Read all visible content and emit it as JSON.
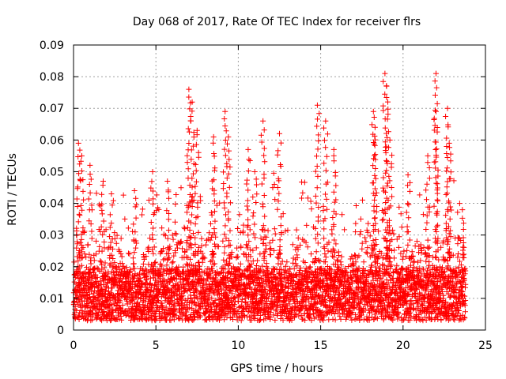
{
  "chart_data": {
    "type": "scatter",
    "title": "Day 068 of 2017, Rate Of TEC Index for receiver flrs",
    "xlabel": "GPS time / hours",
    "ylabel": "ROTI / TECUs",
    "xlim": [
      0,
      25
    ],
    "ylim": [
      0,
      0.09
    ],
    "xticks": [
      0,
      5,
      10,
      15,
      20,
      25
    ],
    "xtick_labels": [
      "0",
      "5",
      "10",
      "15",
      "20",
      "25"
    ],
    "yticks": [
      0,
      0.01,
      0.02,
      0.03,
      0.04,
      0.05,
      0.06,
      0.07,
      0.08,
      0.09
    ],
    "ytick_labels": [
      "0",
      "0.01",
      "0.02",
      "0.03",
      "0.04",
      "0.05",
      "0.06",
      "0.07",
      "0.08",
      "0.09"
    ],
    "grid": true,
    "marker": "+",
    "color": "#ff0000",
    "x_range_of_points": [
      0,
      23.8
    ],
    "baseline_band": [
      0.005,
      0.02
    ],
    "peaks": [
      {
        "x": 0.3,
        "y": 0.059
      },
      {
        "x": 0.5,
        "y": 0.055
      },
      {
        "x": 1.0,
        "y": 0.052
      },
      {
        "x": 1.8,
        "y": 0.047
      },
      {
        "x": 2.3,
        "y": 0.043
      },
      {
        "x": 3.7,
        "y": 0.044
      },
      {
        "x": 4.8,
        "y": 0.05
      },
      {
        "x": 5.7,
        "y": 0.047
      },
      {
        "x": 7.0,
        "y": 0.076
      },
      {
        "x": 7.2,
        "y": 0.072
      },
      {
        "x": 7.5,
        "y": 0.063
      },
      {
        "x": 8.5,
        "y": 0.061
      },
      {
        "x": 9.2,
        "y": 0.069
      },
      {
        "x": 9.4,
        "y": 0.061
      },
      {
        "x": 10.6,
        "y": 0.057
      },
      {
        "x": 11.0,
        "y": 0.05
      },
      {
        "x": 11.5,
        "y": 0.066
      },
      {
        "x": 12.5,
        "y": 0.062
      },
      {
        "x": 14.8,
        "y": 0.071
      },
      {
        "x": 15.3,
        "y": 0.066
      },
      {
        "x": 15.8,
        "y": 0.057
      },
      {
        "x": 18.2,
        "y": 0.069
      },
      {
        "x": 18.3,
        "y": 0.064
      },
      {
        "x": 18.9,
        "y": 0.081
      },
      {
        "x": 19.0,
        "y": 0.077
      },
      {
        "x": 19.2,
        "y": 0.06
      },
      {
        "x": 20.3,
        "y": 0.049
      },
      {
        "x": 21.5,
        "y": 0.055
      },
      {
        "x": 22.0,
        "y": 0.081
      },
      {
        "x": 22.0,
        "y": 0.069
      },
      {
        "x": 22.7,
        "y": 0.07
      },
      {
        "x": 22.8,
        "y": 0.059
      },
      {
        "x": 23.6,
        "y": 0.038
      }
    ]
  }
}
